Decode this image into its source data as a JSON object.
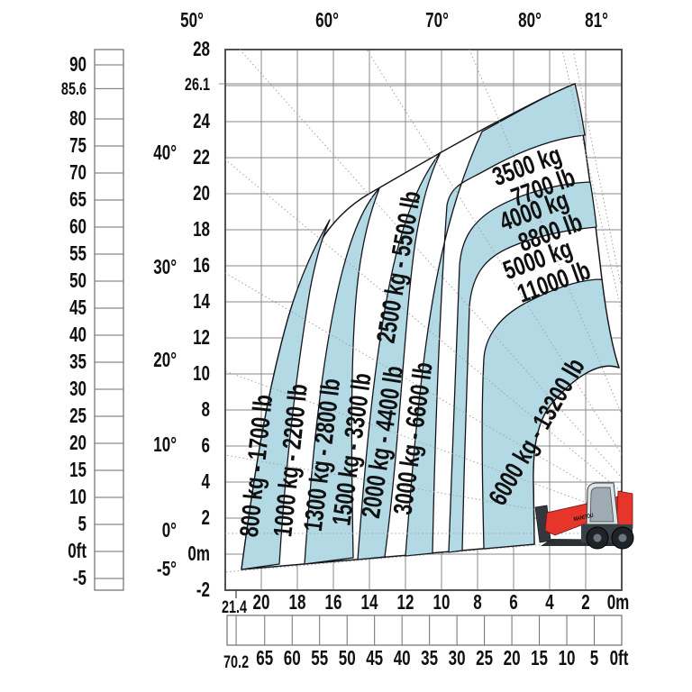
{
  "chart_data": {
    "type": "area",
    "description": "Telehandler boom load capacity envelope: lifting height vs reach with boom angle lines",
    "zones": [
      {
        "id": "800",
        "label": "800 kg - 1700 lb",
        "band": "blue"
      },
      {
        "id": "1000",
        "label": "1000 kg - 2200 lb",
        "band": "white"
      },
      {
        "id": "1300",
        "label": "1300 kg - 2800 lb",
        "band": "blue"
      },
      {
        "id": "1500",
        "label": "1500 kg - 3300 lb",
        "band": "white"
      },
      {
        "id": "2000",
        "label": "2000 kg - 4400 lb",
        "band": "blue"
      },
      {
        "id": "2500",
        "label": "2500 kg - 5500 lb",
        "band": "white"
      },
      {
        "id": "3000",
        "label": "3000 kg - 6600 lb",
        "band": "blue"
      },
      {
        "id": "3500",
        "label_lines": [
          "3500 kg",
          "7700 lb"
        ],
        "band": "white"
      },
      {
        "id": "4000",
        "label_lines": [
          "4000 kg",
          "8800 lb"
        ],
        "band": "blue"
      },
      {
        "id": "5000",
        "label_lines": [
          "5000 kg",
          "11000 lb"
        ],
        "band": "white"
      },
      {
        "id": "6000",
        "label": "6000 kg - 13200 lb",
        "band": "blue"
      }
    ],
    "boom_angle_labels_top": [
      "50°",
      "60°",
      "70°",
      "80°",
      "81°"
    ],
    "boom_angle_labels_left": [
      "40°",
      "30°",
      "20°",
      "10°",
      "0°",
      "-5°"
    ],
    "height_axis_m": [
      "28",
      "26.1",
      "24",
      "22",
      "20",
      "18",
      "16",
      "14",
      "12",
      "10",
      "8",
      "6",
      "4",
      "2",
      "0m",
      "-2"
    ],
    "reach_axis_m": [
      "21.4",
      "20",
      "18",
      "16",
      "14",
      "12",
      "10",
      "8",
      "6",
      "4",
      "2",
      "0m"
    ],
    "height_scale_ft": [
      "90",
      "85.6",
      "80",
      "75",
      "70",
      "65",
      "60",
      "55",
      "50",
      "45",
      "40",
      "35",
      "30",
      "25",
      "20",
      "15",
      "10",
      "5",
      "0ft",
      "-5"
    ],
    "reach_scale_ft": [
      "70.2",
      "65",
      "60",
      "55",
      "50",
      "45",
      "40",
      "35",
      "30",
      "25",
      "20",
      "15",
      "10",
      "5",
      "0ft"
    ],
    "max_height_m": 26.1,
    "max_reach_m": 21.4,
    "machine_brand": "MANITOU",
    "colors": {
      "zone_fill": "#b3d9e5",
      "outline": "#14141c",
      "grid": "#8a8a8a",
      "machine_red": "#e8352b",
      "machine_dark": "#33383e",
      "cab_gray": "#dfe3e6"
    }
  }
}
